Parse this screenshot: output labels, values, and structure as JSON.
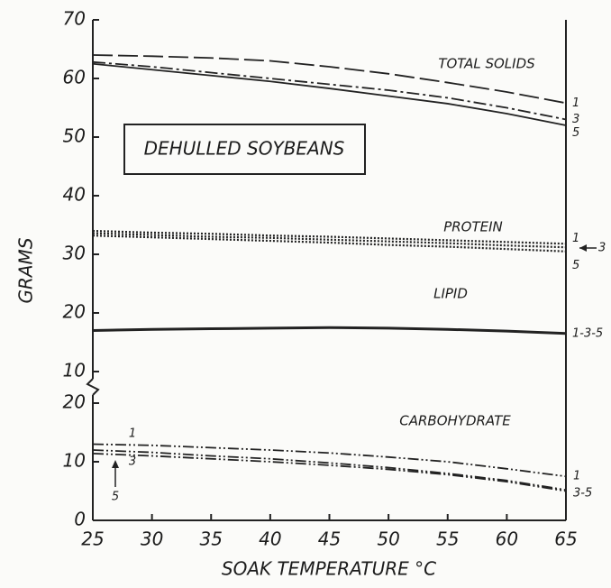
{
  "chart_data": [
    {
      "type": "line",
      "x_label": "SOAK TEMPERATURE °C",
      "y_label": "GRAMS",
      "x": [
        25,
        30,
        35,
        40,
        45,
        50,
        55,
        60,
        65
      ],
      "xlim": [
        25,
        65
      ],
      "ylim": [
        10,
        70
      ],
      "yticks": [
        10,
        20,
        30,
        40,
        50,
        60,
        70
      ],
      "annotations": [
        "TOTAL SOLIDS",
        "PROTEIN",
        "LIPID",
        "DEHULLED SOYBEANS"
      ],
      "series": [
        {
          "name": "1",
          "color": "#222222",
          "style": "long-dash",
          "values": [
            64,
            63.8,
            63.5,
            63,
            62,
            60.8,
            59.3,
            57.7,
            55.8
          ]
        },
        {
          "name": "3",
          "color": "#222222",
          "style": "dash-dot",
          "values": [
            62.8,
            62,
            61,
            60,
            59,
            58,
            56.7,
            55,
            53
          ]
        },
        {
          "name": "5",
          "color": "#222222",
          "style": "solid",
          "values": [
            62.5,
            61.5,
            60.5,
            59.5,
            58.3,
            57,
            55.7,
            54,
            52
          ]
        },
        {
          "name": "1",
          "color": "#222222",
          "style": "dotted",
          "values": [
            34,
            33.7,
            33.5,
            33.2,
            33,
            32.7,
            32.4,
            32.1,
            31.8
          ]
        },
        {
          "name": "3",
          "color": "#222222",
          "style": "dotted",
          "values": [
            33.6,
            33.3,
            33,
            32.8,
            32.5,
            32.2,
            31.9,
            31.5,
            31.2
          ]
        },
        {
          "name": "5",
          "color": "#222222",
          "style": "dotted",
          "values": [
            33.2,
            32.9,
            32.6,
            32.3,
            32,
            31.6,
            31.3,
            30.9,
            30.5
          ]
        },
        {
          "name": "1-3-5",
          "color": "#222222",
          "style": "solid-thick",
          "values": [
            17,
            17.2,
            17.3,
            17.4,
            17.5,
            17.4,
            17.2,
            16.9,
            16.5
          ]
        }
      ]
    },
    {
      "type": "line",
      "x": [
        25,
        30,
        35,
        40,
        45,
        50,
        55,
        60,
        65
      ],
      "xlim": [
        25,
        65
      ],
      "ylim": [
        0,
        20
      ],
      "yticks": [
        0,
        10,
        20
      ],
      "xticks": [
        25,
        30,
        35,
        40,
        45,
        50,
        55,
        60,
        65
      ],
      "annotations": [
        "CARBOHYDRATE"
      ],
      "end_labels": [
        "1",
        "3-5"
      ],
      "series": [
        {
          "name": "1",
          "color": "#222222",
          "style": "dash-dot-dot",
          "values": [
            13,
            12.8,
            12.4,
            12,
            11.5,
            10.8,
            10,
            8.8,
            7.5
          ]
        },
        {
          "name": "3",
          "color": "#222222",
          "style": "dash-dot-dot",
          "values": [
            12,
            11.6,
            11,
            10.5,
            9.8,
            9,
            8,
            6.8,
            5.2
          ]
        },
        {
          "name": "5",
          "color": "#222222",
          "style": "dash-dot-dot",
          "values": [
            11.4,
            11,
            10.5,
            10,
            9.4,
            8.7,
            7.8,
            6.6,
            5
          ]
        }
      ]
    }
  ]
}
